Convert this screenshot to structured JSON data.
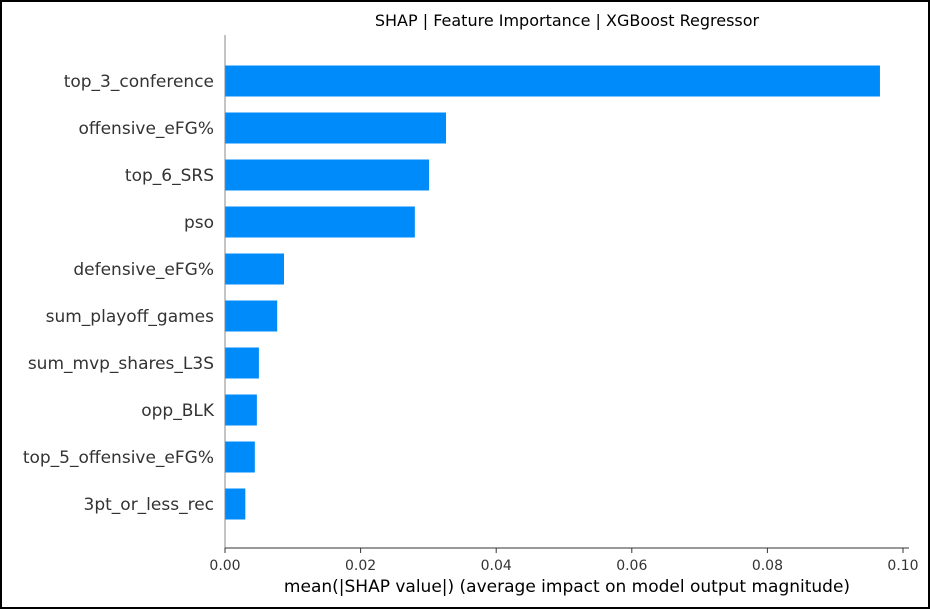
{
  "chart_data": {
    "type": "bar",
    "orientation": "horizontal",
    "title": "SHAP | Feature Importance | XGBoost Regressor",
    "xlabel": "mean(|SHAP value|) (average impact on model output magnitude)",
    "ylabel": "",
    "xlim": [
      0.0,
      0.1
    ],
    "xticks": [
      "0.00",
      "0.02",
      "0.04",
      "0.06",
      "0.08",
      "0.10"
    ],
    "categories": [
      "top_3_conference",
      "offensive_eFG%",
      "top_6_SRS",
      "pso",
      "defensive_eFG%",
      "sum_playoff_games",
      "sum_mvp_shares_L3S",
      "opp_BLK",
      "top_5_offensive_eFG%",
      "3pt_or_less_rec"
    ],
    "values": [
      0.0966,
      0.0326,
      0.0301,
      0.028,
      0.0087,
      0.0077,
      0.005,
      0.0047,
      0.0044,
      0.003
    ],
    "bar_color": "#008bfb",
    "grid": false,
    "legend": "none"
  }
}
